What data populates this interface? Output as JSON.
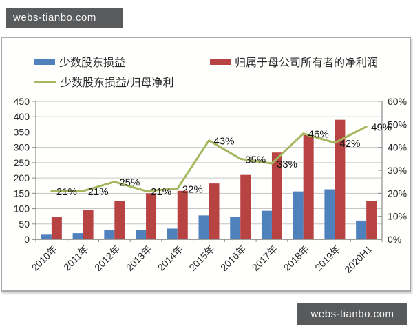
{
  "watermark_top": "webs-tianbo.com",
  "watermark_bottom": "webs-tianbo.com",
  "colors": {
    "bar_minority_blue": "#4f81bd",
    "bar_parent_red": "#b84343",
    "ratio_line_green": "#a3b75c",
    "gridline": "#c6c6c6",
    "axis": "#8c8c8c"
  },
  "legend": {
    "items": [
      {
        "label": "少数股东损益",
        "type": "bar",
        "color": "#4f81bd"
      },
      {
        "label": "归属于母公司所有者的净利润",
        "type": "bar",
        "color": "#b84343"
      },
      {
        "label": "少数股东损益/归母净利",
        "type": "line",
        "color": "#a3b75c"
      }
    ]
  },
  "chart_data": {
    "type": "combo",
    "title": "",
    "categories": [
      "2010年",
      "2011年",
      "2012年",
      "2013年",
      "2014年",
      "2015年",
      "2016年",
      "2017年",
      "2018年",
      "2019年",
      "2020H1"
    ],
    "series": [
      {
        "name": "少数股东损益",
        "type": "bar",
        "axis": "left",
        "color": "#4f81bd",
        "values": [
          15,
          20,
          31,
          31,
          35,
          78,
          73,
          93,
          156,
          163,
          61
        ]
      },
      {
        "name": "归属于母公司所有者的净利润",
        "type": "bar",
        "axis": "left",
        "color": "#b84343",
        "values": [
          72,
          95,
          125,
          150,
          158,
          182,
          210,
          283,
          340,
          390,
          125
        ]
      },
      {
        "name": "少数股东损益/归母净利",
        "type": "line",
        "axis": "right",
        "unit": "%",
        "color": "#a3b75c",
        "values": [
          21,
          21,
          25,
          21,
          22,
          43,
          35,
          33,
          46,
          42,
          49
        ],
        "data_labels": [
          "21%",
          "21%",
          "25%",
          "21%",
          "22%",
          "43%",
          "35%",
          "33%",
          "46%",
          "42%",
          "49%"
        ]
      }
    ],
    "left_axis": {
      "min": 0,
      "max": 450,
      "step": 50,
      "ticks": [
        "0",
        "50",
        "100",
        "150",
        "200",
        "250",
        "300",
        "350",
        "400",
        "450"
      ]
    },
    "right_axis": {
      "min": 0,
      "max": 60,
      "step": 10,
      "ticks": [
        "0%",
        "10%",
        "20%",
        "30%",
        "40%",
        "50%",
        "60%"
      ]
    },
    "grid": true,
    "legend_position": "top"
  }
}
